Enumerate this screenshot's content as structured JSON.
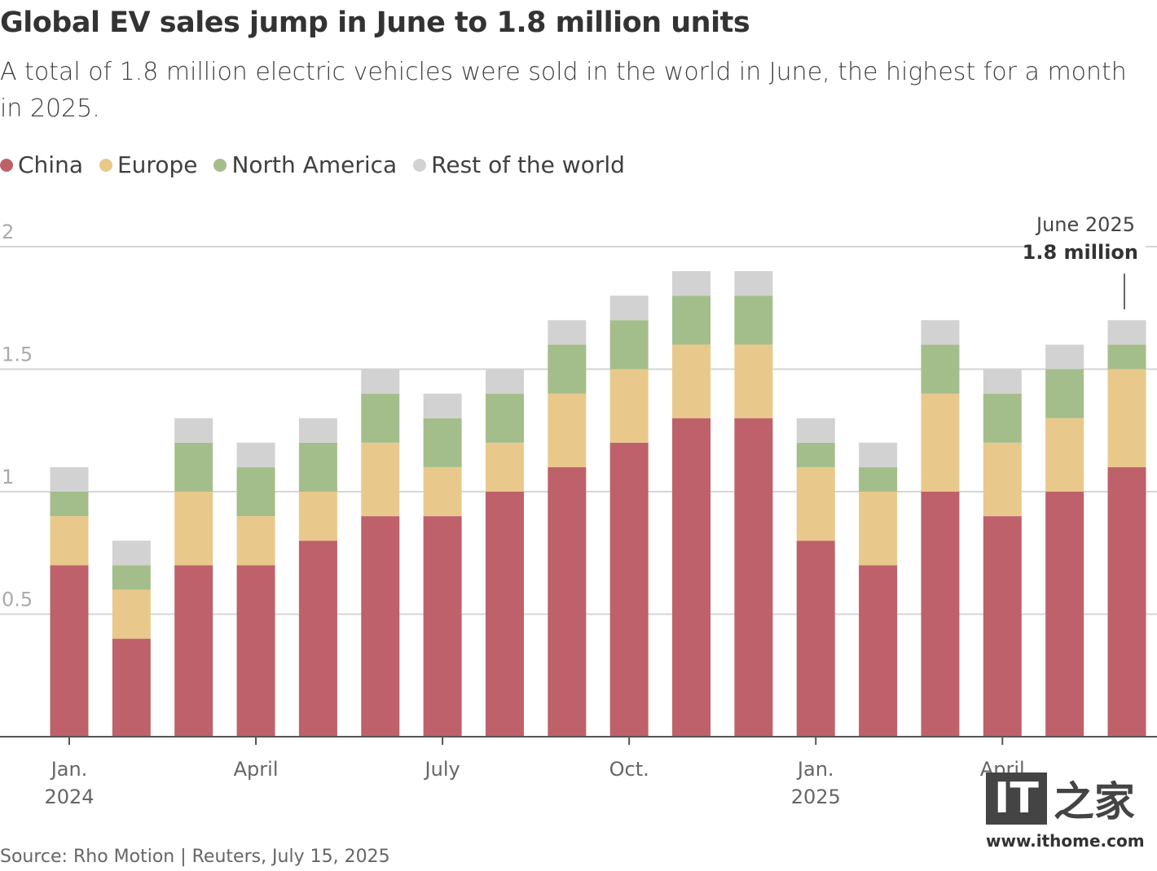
{
  "title": "Global EV sales jump in June to 1.8 million units",
  "subtitle": "A total of 1.8 million electric vehicles were sold in the world in June, the highest for a month in 2025.",
  "source": "Source: Rho Motion | Reuters, July 15, 2025",
  "watermark": {
    "logo": "IT之家",
    "url": "www.ithome.com"
  },
  "annotation": {
    "line1": "June 2025",
    "line2": "1.8 million"
  },
  "chart_data": {
    "type": "bar",
    "stacked": true,
    "title": "Global EV sales jump in June to 1.8 million units",
    "ylim": [
      0,
      2
    ],
    "yticks": [
      "0.5",
      "1",
      "1.5",
      "2"
    ],
    "grid": true,
    "legend": "top-left",
    "categories": [
      "Jan 2024",
      "Feb 2024",
      "Mar 2024",
      "Apr 2024",
      "May 2024",
      "Jun 2024",
      "Jul 2024",
      "Aug 2024",
      "Sep 2024",
      "Oct 2024",
      "Nov 2024",
      "Dec 2024",
      "Jan 2025",
      "Feb 2025",
      "Mar 2025",
      "Apr 2025",
      "May 2025",
      "Jun 2025"
    ],
    "xtick_labels": [
      {
        "index": 0,
        "line1": "Jan.",
        "line2": "2024"
      },
      {
        "index": 3,
        "line1": "April",
        "line2": ""
      },
      {
        "index": 6,
        "line1": "July",
        "line2": ""
      },
      {
        "index": 9,
        "line1": "Oct.",
        "line2": ""
      },
      {
        "index": 12,
        "line1": "Jan.",
        "line2": "2025"
      },
      {
        "index": 15,
        "line1": "April",
        "line2": ""
      }
    ],
    "series": [
      {
        "name": "China",
        "color": "#bf616a",
        "values": [
          0.7,
          0.4,
          0.7,
          0.7,
          0.8,
          0.9,
          0.9,
          1.0,
          1.1,
          1.2,
          1.3,
          1.3,
          0.8,
          0.7,
          1.0,
          0.9,
          1.0,
          1.1
        ]
      },
      {
        "name": "Europe",
        "color": "#e9c98b",
        "values": [
          0.2,
          0.2,
          0.3,
          0.2,
          0.2,
          0.3,
          0.2,
          0.2,
          0.3,
          0.3,
          0.3,
          0.3,
          0.3,
          0.3,
          0.4,
          0.3,
          0.3,
          0.4
        ]
      },
      {
        "name": "North America",
        "color": "#a4be8b",
        "values": [
          0.1,
          0.1,
          0.2,
          0.2,
          0.2,
          0.2,
          0.2,
          0.2,
          0.2,
          0.2,
          0.2,
          0.2,
          0.1,
          0.1,
          0.2,
          0.2,
          0.2,
          0.1
        ]
      },
      {
        "name": "Rest of the world",
        "color": "#d2d2d2",
        "values": [
          0.1,
          0.1,
          0.1,
          0.1,
          0.1,
          0.1,
          0.1,
          0.1,
          0.1,
          0.1,
          0.1,
          0.1,
          0.1,
          0.1,
          0.1,
          0.1,
          0.1,
          0.1
        ]
      }
    ]
  }
}
